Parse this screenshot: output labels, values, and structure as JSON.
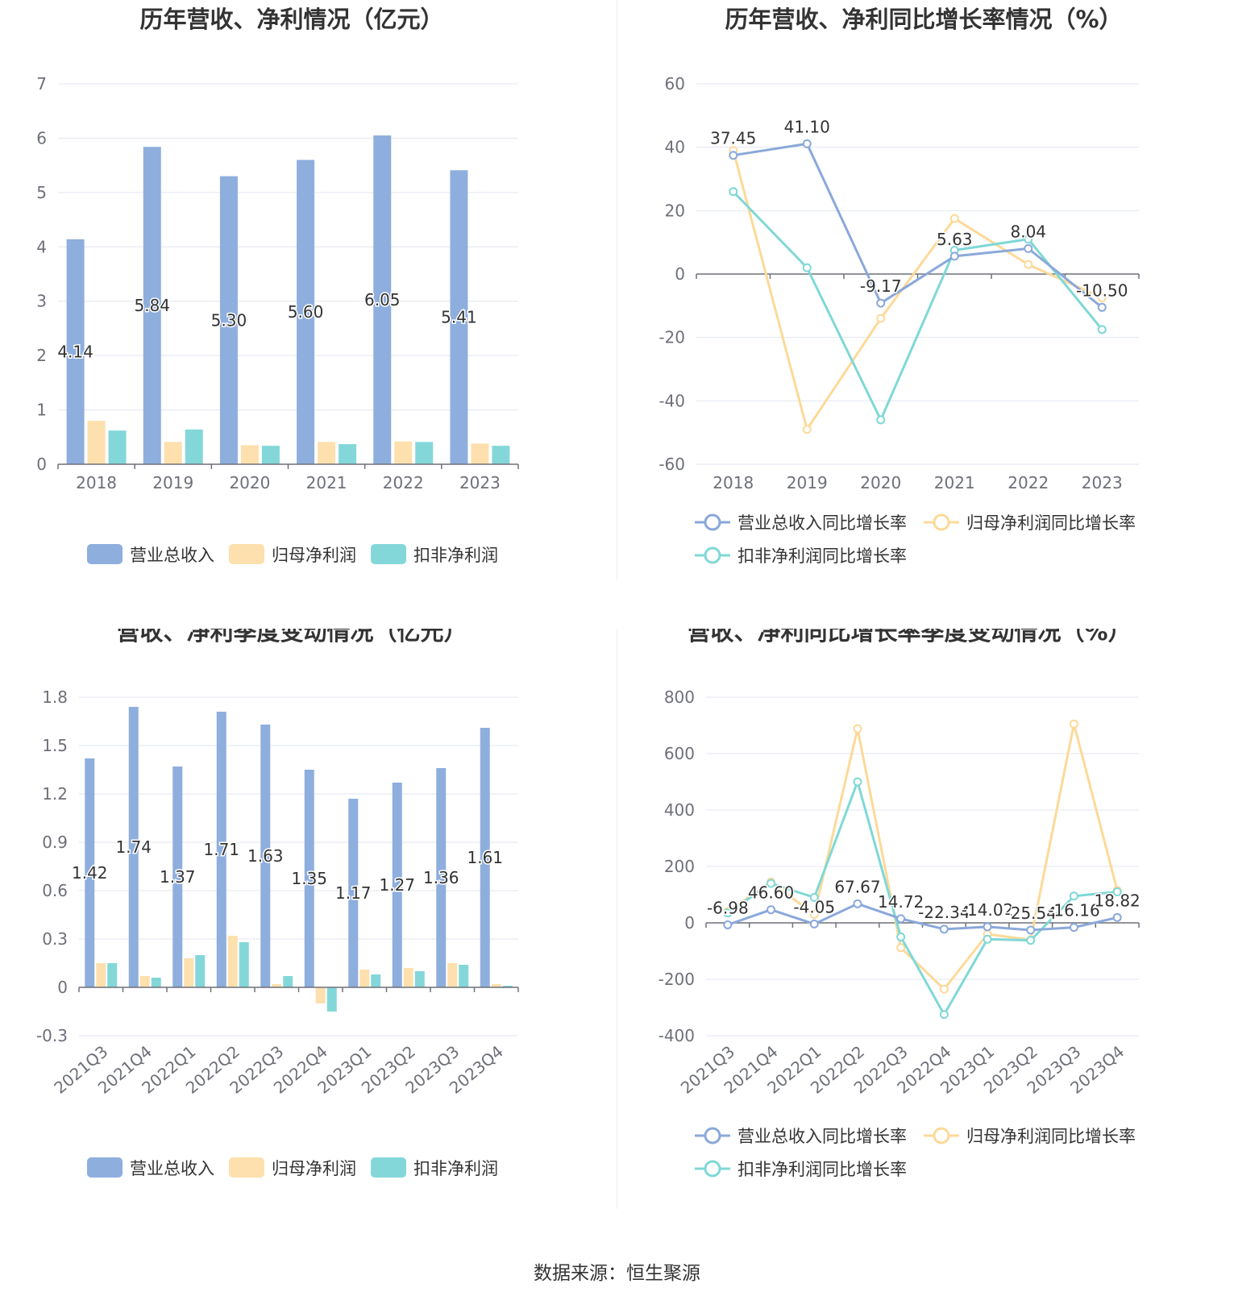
{
  "source_label": "数据来源：恒生聚源",
  "colors": {
    "revenue": "#8eaedd",
    "net_profit": "#fde0ad",
    "deducted_net_profit": "#84d7d9",
    "revenue_line": "#8aa8da",
    "net_profit_line": "#fdd998",
    "deducted_line": "#7fd8d6",
    "grid": "#e0e6f1",
    "axis": "#6e7079"
  },
  "chart_data": [
    {
      "type": "bar",
      "title": "历年营收、净利情况（亿元）",
      "categories": [
        "2018",
        "2019",
        "2020",
        "2021",
        "2022",
        "2023"
      ],
      "ylim": [
        0,
        7
      ],
      "yticks": [
        0,
        1,
        2,
        3,
        4,
        5,
        6,
        7
      ],
      "ytick_labels": [
        "0",
        "1",
        "2",
        "3",
        "4",
        "5",
        "6",
        "7"
      ],
      "legend_position": "bottom",
      "series": [
        {
          "name": "营业总收入",
          "values": [
            4.14,
            5.84,
            5.3,
            5.6,
            6.05,
            5.41
          ],
          "labels": [
            "4.14",
            "5.84",
            "5.30",
            "5.60",
            "6.05",
            "5.41"
          ]
        },
        {
          "name": "归母净利润",
          "values": [
            0.8,
            0.41,
            0.35,
            0.41,
            0.42,
            0.38
          ]
        },
        {
          "name": "扣非净利润",
          "values": [
            0.62,
            0.64,
            0.34,
            0.37,
            0.41,
            0.34
          ]
        }
      ]
    },
    {
      "type": "line",
      "title": "历年营收、净利同比增长率情况（%）",
      "categories": [
        "2018",
        "2019",
        "2020",
        "2021",
        "2022",
        "2023"
      ],
      "ylim": [
        -60,
        60
      ],
      "yticks": [
        -60,
        -40,
        -20,
        0,
        20,
        40,
        60
      ],
      "ytick_labels": [
        "-60",
        "-40",
        "-20",
        "0",
        "20",
        "40",
        "60"
      ],
      "legend_position": "bottom",
      "series": [
        {
          "name": "营业总收入同比增长率",
          "values": [
            37.45,
            41.1,
            -9.17,
            5.63,
            8.04,
            -10.5
          ],
          "labels": [
            "37.45",
            "41.10",
            "-9.17",
            "5.63",
            "8.04",
            "-10.50"
          ]
        },
        {
          "name": "归母净利润同比增长率",
          "values": [
            39.0,
            -49.0,
            -14.0,
            17.5,
            3.0,
            -7.5
          ]
        },
        {
          "name": "扣非净利润同比增长率",
          "values": [
            26.0,
            2.0,
            -46.0,
            7.5,
            11.0,
            -17.5
          ]
        }
      ]
    },
    {
      "type": "bar",
      "title": "营收、净利季度变动情况（亿元）",
      "categories": [
        "2021Q3",
        "2021Q4",
        "2022Q1",
        "2022Q2",
        "2022Q3",
        "2022Q4",
        "2023Q1",
        "2023Q2",
        "2023Q3",
        "2023Q4"
      ],
      "ylim": [
        -0.3,
        1.8
      ],
      "yticks": [
        -0.3,
        0,
        0.3,
        0.6,
        0.9,
        1.2,
        1.5,
        1.8
      ],
      "ytick_labels": [
        "-0.3",
        "0",
        "0.3",
        "0.6",
        "0.9",
        "1.2",
        "1.5",
        "1.8"
      ],
      "legend_position": "bottom",
      "series": [
        {
          "name": "营业总收入",
          "values": [
            1.42,
            1.74,
            1.37,
            1.71,
            1.63,
            1.35,
            1.17,
            1.27,
            1.36,
            1.61
          ],
          "labels": [
            "1.42",
            "1.74",
            "1.37",
            "1.71",
            "1.63",
            "1.35",
            "1.17",
            "1.27",
            "1.36",
            "1.61"
          ]
        },
        {
          "name": "归母净利润",
          "values": [
            0.15,
            0.07,
            0.18,
            0.32,
            0.02,
            -0.1,
            0.11,
            0.12,
            0.15,
            0.02
          ]
        },
        {
          "name": "扣非净利润",
          "values": [
            0.15,
            0.06,
            0.2,
            0.28,
            0.07,
            -0.15,
            0.08,
            0.1,
            0.14,
            0.01
          ]
        }
      ]
    },
    {
      "type": "line",
      "title": "营收、净利同比增长率季度变动情况（%）",
      "categories": [
        "2021Q3",
        "2021Q4",
        "2022Q1",
        "2022Q2",
        "2022Q3",
        "2022Q4",
        "2023Q1",
        "2023Q2",
        "2023Q3",
        "2023Q4"
      ],
      "ylim": [
        -400,
        800
      ],
      "yticks": [
        -400,
        -200,
        0,
        200,
        400,
        600,
        800
      ],
      "ytick_labels": [
        "-400",
        "-200",
        "0",
        "200",
        "400",
        "600",
        "800"
      ],
      "legend_position": "bottom",
      "series": [
        {
          "name": "营业总收入同比增长率",
          "values": [
            -6.98,
            46.6,
            -4.05,
            67.67,
            14.72,
            -22.34,
            -14.02,
            -25.54,
            -16.16,
            18.82
          ],
          "labels": [
            "-6.98",
            "46.60",
            "-4.05",
            "67.67",
            "14.72",
            "-22.34",
            "-14.02",
            "-25.54",
            "-16.16",
            "18.82"
          ]
        },
        {
          "name": "归母净利润同比增长率",
          "values": [
            40,
            145,
            30,
            688,
            -88,
            -235,
            -40,
            -60,
            705,
            115
          ]
        },
        {
          "name": "扣非净利润同比增长率",
          "values": [
            35,
            140,
            90,
            500,
            -50,
            -325,
            -58,
            -62,
            95,
            110
          ]
        }
      ]
    }
  ]
}
